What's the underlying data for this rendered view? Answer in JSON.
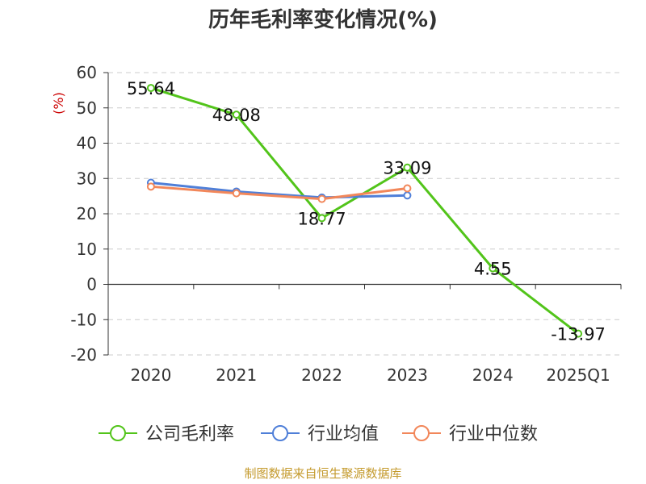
{
  "chart_data": {
    "type": "line",
    "title": "历年毛利率变化情况(%)",
    "ylabel": "(%)",
    "categories": [
      "2020",
      "2021",
      "2022",
      "2023",
      "2024",
      "2025Q1"
    ],
    "yticks": [
      "60",
      "50",
      "40",
      "30",
      "20",
      "10",
      "0",
      "-10",
      "-20"
    ],
    "ylim": [
      -20,
      60
    ],
    "grid": true,
    "legend_position": "bottom",
    "series": [
      {
        "name": "公司毛利率",
        "color": "#52c41a",
        "values": [
          55.64,
          48.08,
          18.77,
          33.09,
          4.55,
          -13.97
        ],
        "labels": [
          "55.64",
          "48.08",
          "18.77",
          "33.09",
          "4.55",
          "-13.97"
        ]
      },
      {
        "name": "行业均值",
        "color": "#4f7fd8",
        "values": [
          28.8,
          26.3,
          24.6,
          25.2,
          null,
          null
        ]
      },
      {
        "name": "行业中位数",
        "color": "#f2875a",
        "values": [
          27.7,
          25.8,
          24.2,
          27.2,
          null,
          null
        ]
      }
    ],
    "source": "制图数据来自恒生聚源数据库"
  }
}
